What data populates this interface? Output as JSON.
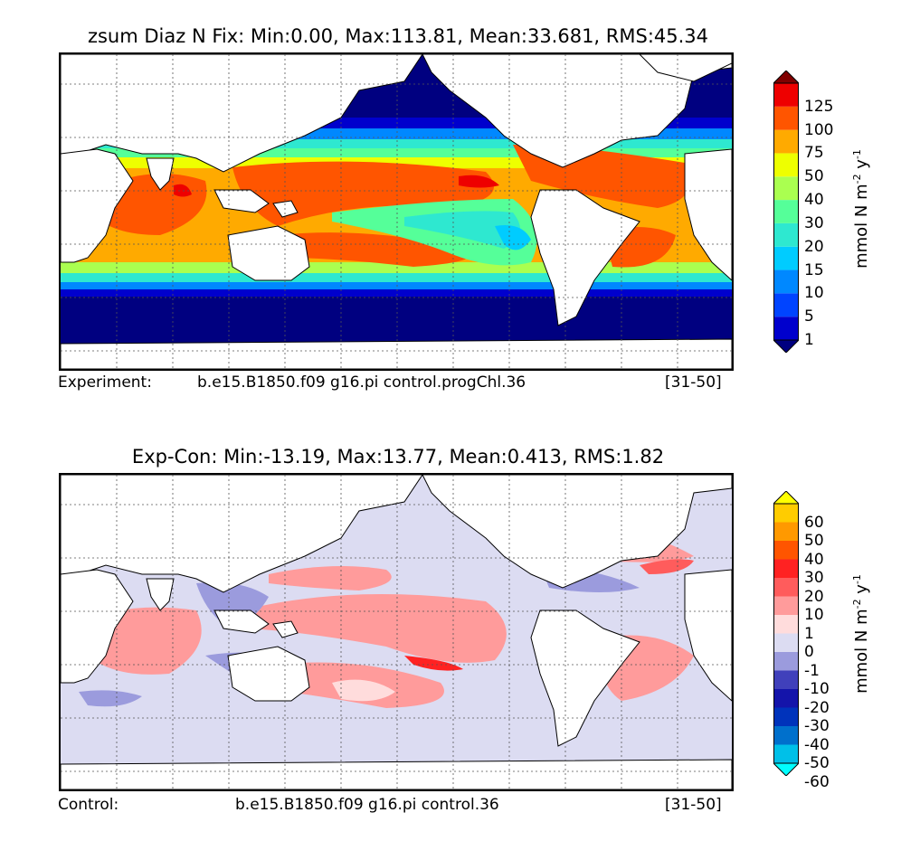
{
  "panels": [
    {
      "title": "zsum Diaz N Fix: Min:0.00, Max:113.81, Mean:33.681, RMS:45.34",
      "caption_left": "Experiment:",
      "caption_mid": "b.e15.B1850.f09 g16.pi control.progChl.36",
      "caption_right": "[31-50]",
      "colorbar": {
        "unit": "mmol N m",
        "unit_sup1": "-2",
        "unit_y": " y",
        "unit_sup2": "-1",
        "labels": [
          "125",
          "100",
          "75",
          "50",
          "40",
          "30",
          "20",
          "15",
          "10",
          "5",
          "1"
        ],
        "colors": [
          "#000080",
          "#0000cd",
          "#0044ff",
          "#0088ff",
          "#00ccff",
          "#2ee8d0",
          "#55ff99",
          "#aaff50",
          "#eeff00",
          "#ffaa00",
          "#ff5500",
          "#ee0000",
          "#800000"
        ]
      }
    },
    {
      "title": "Exp-Con: Min:-13.19, Max:13.77, Mean:0.413, RMS:1.82",
      "caption_left": "Control:",
      "caption_mid": "b.e15.B1850.f09 g16.pi control.36",
      "caption_right": "[31-50]",
      "colorbar": {
        "unit": "mmol N m",
        "unit_sup1": "-2",
        "unit_y": " y",
        "unit_sup2": "-1",
        "labels": [
          "60",
          "50",
          "40",
          "30",
          "20",
          "10",
          "1",
          "0",
          "-1",
          "-10",
          "-20",
          "-30",
          "-40",
          "-50",
          "-60"
        ],
        "colors": [
          "#00ffff",
          "#00c0e8",
          "#0070cc",
          "#0033bb",
          "#1414aa",
          "#4040bb",
          "#9b9bdd",
          "#dcdcf2",
          "#ffdcdc",
          "#ff9b9b",
          "#ff5c5c",
          "#ff2222",
          "#ff5500",
          "#ff9900",
          "#ffcc00",
          "#ffff00"
        ]
      }
    }
  ]
}
